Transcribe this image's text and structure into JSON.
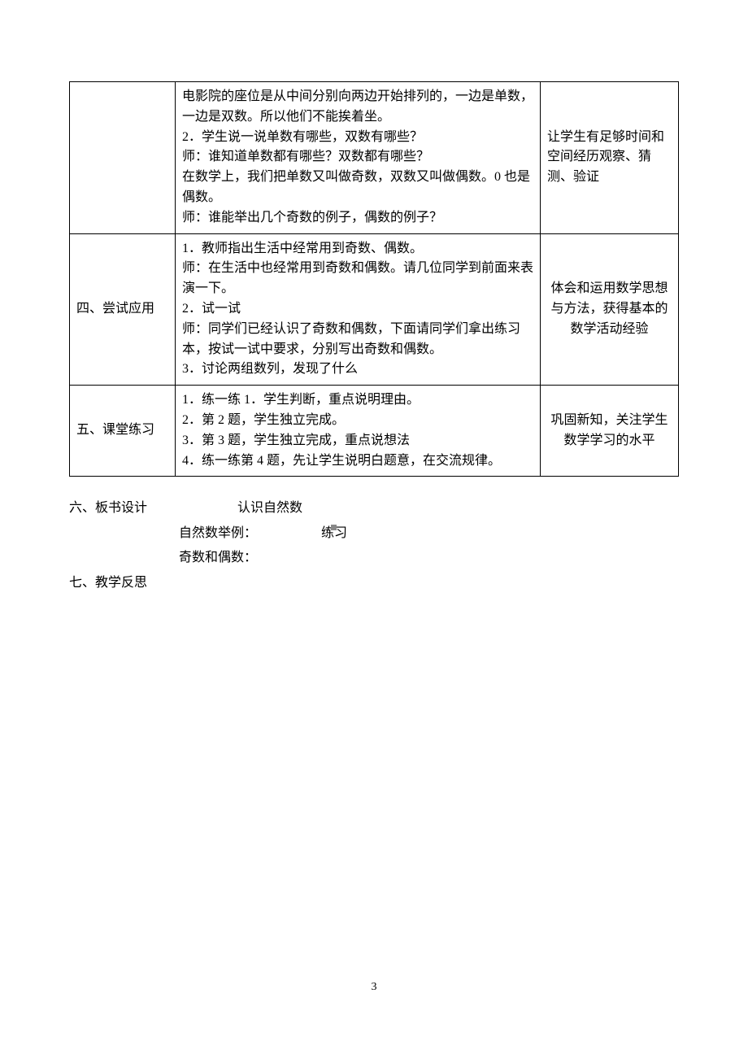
{
  "table": {
    "rows": [
      {
        "col1": "",
        "col2": "电影院的座位是从中间分别向两边开始排列的，一边是单数，一边是双数。所以他们不能挨着坐。\n2．学生说一说单数有哪些，双数有哪些？\n师：谁知道单数都有哪些？双数都有哪些？\n在数学上，我们把单数又叫做奇数，双数又叫做偶数。0 也是偶数。\n师：谁能举出几个奇数的例子，偶数的例子？",
        "col3": "让学生有足够时间和空间经历观察、猜测、验证"
      },
      {
        "col1": "四、尝试应用",
        "col2": "1．教师指出生活中经常用到奇数、偶数。\n师：在生活中也经常用到奇数和偶数。请几位同学到前面来表演一下。\n2．试一试\n师：同学们已经认识了奇数和偶数，下面请同学们拿出练习本，按试一试中要求，分别写出奇数和偶数。\n3．讨论两组数列，发现了什么",
        "col3": "体会和运用数学思想与方法，获得基本的数学活动经验",
        "col3_center": true
      },
      {
        "col1": "五、课堂练习",
        "col2": "1．练一练 1．学生判断，重点说明理由。\n2．第 2 题，学生独立完成。\n3．第 3 题，学生独立完成，重点说想法\n4．练一练第 4 题，先让学生说明白题意，在交流规律。",
        "col3": "巩固新知，关注学生数学学习的水平",
        "col3_center": true
      }
    ]
  },
  "post": {
    "row1_label": "六、板书设计",
    "row1_line1": "认识自然数",
    "row1_line2_left": "自然数举例：",
    "row1_line2_right": "练习",
    "row1_line3": "奇数和偶数：",
    "row2_label": "七、教学反思"
  },
  "page_number": "3",
  "styles": {
    "background_color": "#ffffff",
    "text_color": "#000000",
    "border_color": "#000000",
    "font_family": "SimSun",
    "body_font_size": 16
  }
}
